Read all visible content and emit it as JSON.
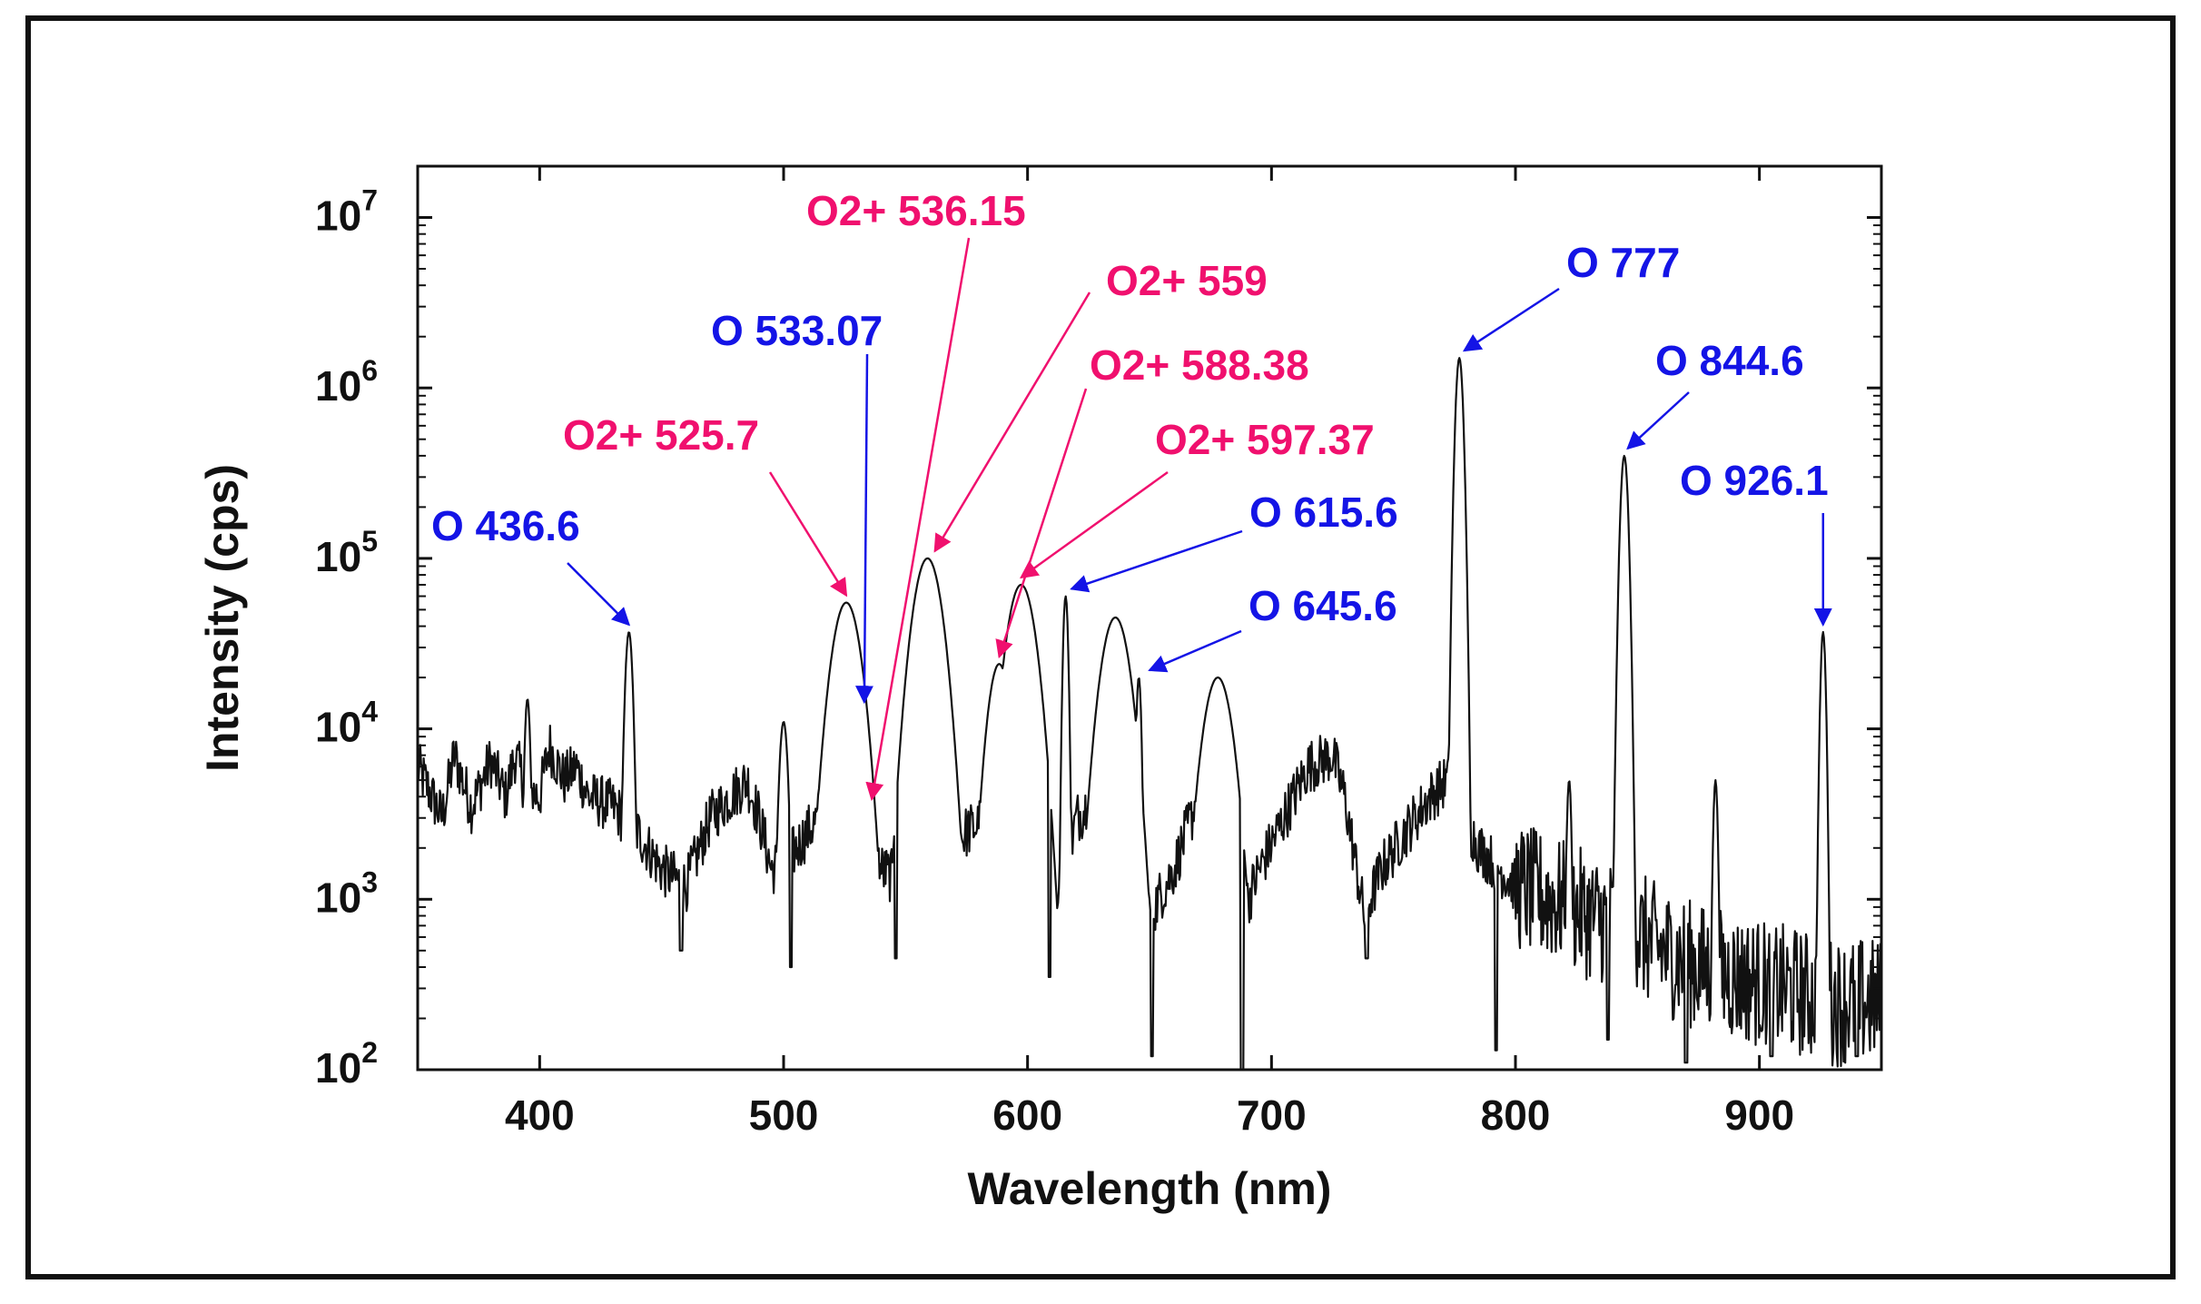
{
  "chart_data": {
    "type": "line",
    "title": "",
    "xlabel": "Wavelength (nm)",
    "ylabel": "Intensity (cps)",
    "xlim": [
      350,
      950
    ],
    "ylim": [
      100,
      20000000
    ],
    "yscale": "log",
    "x_ticks": [
      400,
      500,
      600,
      700,
      800,
      900
    ],
    "y_ticks": [
      {
        "value": 100,
        "base": "10",
        "exp": "2"
      },
      {
        "value": 1000,
        "base": "10",
        "exp": "3"
      },
      {
        "value": 10000,
        "base": "10",
        "exp": "4"
      },
      {
        "value": 100000,
        "base": "10",
        "exp": "5"
      },
      {
        "value": 1000000,
        "base": "10",
        "exp": "6"
      },
      {
        "value": 10000000,
        "base": "10",
        "exp": "7"
      }
    ],
    "colors": {
      "line": "#111111",
      "oxygen": "#1414e6",
      "o2plus": "#f0106e"
    },
    "baseline": [
      [
        350,
        6000
      ],
      [
        360,
        3000
      ],
      [
        365,
        7000
      ],
      [
        372,
        3500
      ],
      [
        380,
        6500
      ],
      [
        386,
        4000
      ],
      [
        390,
        7000
      ],
      [
        394,
        4500
      ],
      [
        400,
        4000
      ],
      [
        404,
        8000
      ],
      [
        410,
        5000
      ],
      [
        415,
        6000
      ],
      [
        420,
        4000
      ],
      [
        430,
        3500
      ],
      [
        440,
        2500
      ],
      [
        450,
        1500
      ],
      [
        460,
        1200
      ],
      [
        470,
        3000
      ],
      [
        478,
        4000
      ],
      [
        485,
        5000
      ],
      [
        490,
        3000
      ],
      [
        495,
        1500
      ],
      [
        503,
        1800
      ],
      [
        510,
        2500
      ],
      [
        518,
        3500
      ],
      [
        530,
        3000
      ],
      [
        540,
        1500
      ],
      [
        550,
        1200
      ],
      [
        565,
        1500
      ],
      [
        575,
        2500
      ],
      [
        585,
        3000
      ],
      [
        600,
        3000
      ],
      [
        610,
        600
      ],
      [
        620,
        3000
      ],
      [
        628,
        4000
      ],
      [
        640,
        3000
      ],
      [
        650,
        800
      ],
      [
        660,
        1500
      ],
      [
        670,
        4000
      ],
      [
        680,
        5000
      ],
      [
        688,
        800
      ],
      [
        695,
        1500
      ],
      [
        705,
        3000
      ],
      [
        715,
        6000
      ],
      [
        725,
        7000
      ],
      [
        730,
        4000
      ],
      [
        738,
        800
      ],
      [
        745,
        1500
      ],
      [
        755,
        2500
      ],
      [
        765,
        4000
      ],
      [
        772,
        5000
      ],
      [
        785,
        2000
      ],
      [
        800,
        1200
      ],
      [
        815,
        1000
      ],
      [
        830,
        800
      ],
      [
        845,
        700
      ],
      [
        860,
        500
      ],
      [
        875,
        400
      ],
      [
        890,
        350
      ],
      [
        910,
        300
      ],
      [
        930,
        250
      ],
      [
        950,
        250
      ]
    ],
    "peaks": [
      {
        "x": 395,
        "y": 15000,
        "w": 1.0
      },
      {
        "x": 436.6,
        "y": 37000,
        "w": 1.3
      },
      {
        "x": 500,
        "y": 11000,
        "w": 1.5
      },
      {
        "x": 525.7,
        "y": 55000,
        "w": 5
      },
      {
        "x": 533.07,
        "y": 13000,
        "w": 0.8
      },
      {
        "x": 559,
        "y": 100000,
        "w": 5
      },
      {
        "x": 588.38,
        "y": 24000,
        "w": 4
      },
      {
        "x": 597.37,
        "y": 70000,
        "w": 5
      },
      {
        "x": 615.6,
        "y": 60000,
        "w": 0.9
      },
      {
        "x": 636,
        "y": 45000,
        "w": 5
      },
      {
        "x": 645.6,
        "y": 20000,
        "w": 0.9
      },
      {
        "x": 678,
        "y": 20000,
        "w": 5
      },
      {
        "x": 777,
        "y": 1500000,
        "w": 1.3
      },
      {
        "x": 822,
        "y": 5000,
        "w": 0.8
      },
      {
        "x": 844.6,
        "y": 400000,
        "w": 1.3
      },
      {
        "x": 882,
        "y": 5000,
        "w": 0.8
      },
      {
        "x": 926.1,
        "y": 37000,
        "w": 0.9
      }
    ],
    "dips": [
      {
        "x": 458,
        "y": 500
      },
      {
        "x": 503,
        "y": 400
      },
      {
        "x": 546,
        "y": 450
      },
      {
        "x": 609,
        "y": 350
      },
      {
        "x": 651,
        "y": 120
      },
      {
        "x": 688,
        "y": 100
      },
      {
        "x": 739,
        "y": 450
      },
      {
        "x": 792,
        "y": 130
      },
      {
        "x": 838,
        "y": 150
      },
      {
        "x": 870,
        "y": 110
      },
      {
        "x": 905,
        "y": 120
      },
      {
        "x": 940,
        "y": 120
      }
    ],
    "annotations": [
      {
        "label": "O 436.6",
        "kind": "oxygen",
        "peak_x": 436.6,
        "peak_y": 37000
      },
      {
        "label": "O2+ 525.7",
        "kind": "o2plus",
        "peak_x": 525.7,
        "peak_y": 55000
      },
      {
        "label": "O 533.07",
        "kind": "oxygen",
        "peak_x": 533.07,
        "peak_y": 13000
      },
      {
        "label": "O2+ 536.15",
        "kind": "o2plus",
        "peak_x": 536.15,
        "peak_y": 3500
      },
      {
        "label": "O2+ 559",
        "kind": "o2plus",
        "peak_x": 562,
        "peak_y": 100000
      },
      {
        "label": "O2+ 588.38",
        "kind": "o2plus",
        "peak_x": 588.38,
        "peak_y": 24000
      },
      {
        "label": "O2+ 597.37",
        "kind": "o2plus",
        "peak_x": 597.37,
        "peak_y": 70000
      },
      {
        "label": "O 615.6",
        "kind": "oxygen",
        "peak_x": 618,
        "peak_y": 60000
      },
      {
        "label": "O 645.6",
        "kind": "oxygen",
        "peak_x": 650,
        "peak_y": 20000
      },
      {
        "label": "O 777",
        "kind": "oxygen",
        "peak_x": 779,
        "peak_y": 1500000
      },
      {
        "label": "O 844.6",
        "kind": "oxygen",
        "peak_x": 846,
        "peak_y": 400000
      },
      {
        "label": "O 926.1",
        "kind": "oxygen",
        "peak_x": 926.1,
        "peak_y": 37000
      }
    ]
  }
}
